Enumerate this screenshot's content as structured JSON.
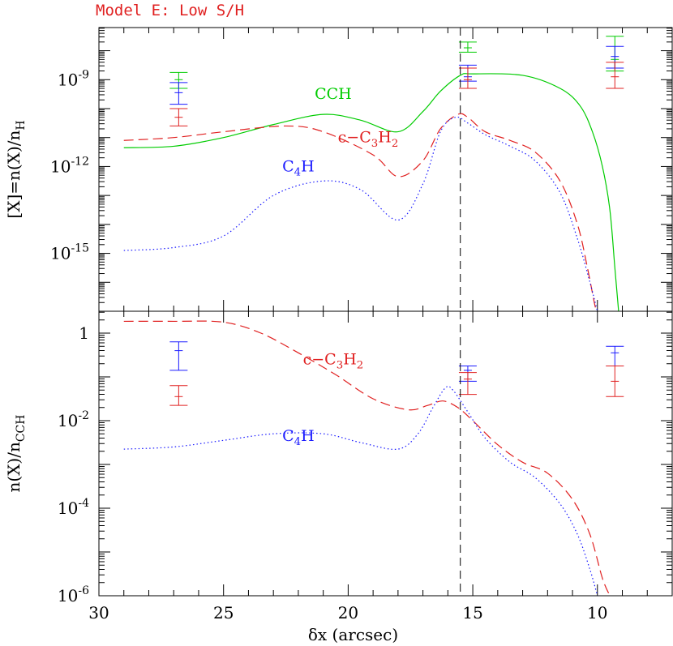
{
  "header": {
    "model_title": "Model E: Low S/H"
  },
  "colors": {
    "axis": "#000000",
    "cch": "#00cc00",
    "c3h2": "#e02020",
    "c4h": "#1a1aff",
    "title": "#e02020"
  },
  "chart_data": [
    {
      "type": "line",
      "panel": "top",
      "ylabel": "[X]=n(X)/n_H",
      "xlabel": "δx (arcsec)",
      "x_reversed": true,
      "xlim": [
        30,
        7
      ],
      "ylog": true,
      "ylim_log10": [
        -17,
        -7.2
      ],
      "y_ticks": [
        {
          "value_log10": -9,
          "label": "10",
          "exp": "-9"
        },
        {
          "value_log10": -12,
          "label": "10",
          "exp": "-12"
        },
        {
          "value_log10": -15,
          "label": "10",
          "exp": "-15"
        }
      ],
      "vertical_line_x": 15.5,
      "series": [
        {
          "name": "CCH",
          "style": "solid",
          "color_key": "cch",
          "x_log10y": [
            [
              29,
              -11.35
            ],
            [
              27,
              -11.3
            ],
            [
              25,
              -11.0
            ],
            [
              23,
              -10.55
            ],
            [
              21,
              -10.2
            ],
            [
              19.5,
              -10.4
            ],
            [
              18,
              -10.8
            ],
            [
              17,
              -10.1
            ],
            [
              16.3,
              -9.4
            ],
            [
              15.5,
              -8.85
            ],
            [
              15,
              -8.8
            ],
            [
              13,
              -8.85
            ],
            [
              11.5,
              -9.3
            ],
            [
              10.7,
              -9.9
            ],
            [
              10.2,
              -10.8
            ],
            [
              9.8,
              -12.0
            ],
            [
              9.5,
              -13.5
            ],
            [
              9.3,
              -15.5
            ],
            [
              9.15,
              -17.0
            ]
          ]
        },
        {
          "name": "c-C3H2",
          "style": "dashed",
          "color_key": "c3h2",
          "x_log10y": [
            [
              29,
              -11.1
            ],
            [
              27,
              -11.0
            ],
            [
              25,
              -10.8
            ],
            [
              22.5,
              -10.6
            ],
            [
              21,
              -10.8
            ],
            [
              19,
              -11.6
            ],
            [
              18,
              -12.35
            ],
            [
              17,
              -11.8
            ],
            [
              16.3,
              -10.7
            ],
            [
              15.6,
              -10.2
            ],
            [
              15.2,
              -10.3
            ],
            [
              14.5,
              -10.8
            ],
            [
              13.5,
              -11.1
            ],
            [
              12.5,
              -11.5
            ],
            [
              11.5,
              -12.5
            ],
            [
              10.8,
              -14.0
            ],
            [
              10.4,
              -15.5
            ],
            [
              10.1,
              -16.8
            ],
            [
              10.0,
              -17.0
            ]
          ]
        },
        {
          "name": "C4H",
          "style": "dotted",
          "color_key": "c4h",
          "x_log10y": [
            [
              29,
              -14.9
            ],
            [
              27,
              -14.8
            ],
            [
              25,
              -14.4
            ],
            [
              23,
              -13.0
            ],
            [
              21,
              -12.5
            ],
            [
              19.5,
              -12.8
            ],
            [
              18,
              -13.85
            ],
            [
              17,
              -12.6
            ],
            [
              16.3,
              -10.8
            ],
            [
              15.7,
              -10.3
            ],
            [
              15.2,
              -10.5
            ],
            [
              14.5,
              -10.9
            ],
            [
              13.5,
              -11.3
            ],
            [
              12.5,
              -11.8
            ],
            [
              11.5,
              -12.9
            ],
            [
              10.8,
              -14.5
            ],
            [
              10.3,
              -16.0
            ],
            [
              10.0,
              -17.0
            ]
          ]
        }
      ],
      "observations": [
        {
          "x": 26.8,
          "color_key": "cch",
          "center": -9.0,
          "low": -9.3,
          "high": -8.75
        },
        {
          "x": 26.8,
          "color_key": "c4h",
          "center": -9.45,
          "low": -9.85,
          "high": -9.1
        },
        {
          "x": 26.8,
          "color_key": "c3h2",
          "center": -10.3,
          "low": -10.6,
          "high": -10.0
        },
        {
          "x": 15.2,
          "color_key": "cch",
          "center": -7.9,
          "low": -8.05,
          "high": -7.7
        },
        {
          "x": 15.2,
          "color_key": "c4h",
          "center": -8.9,
          "low": -9.05,
          "high": -8.5
        },
        {
          "x": 15.2,
          "color_key": "c3h2",
          "center": -9.0,
          "low": -9.3,
          "high": -8.6
        },
        {
          "x": 9.3,
          "color_key": "cch",
          "center": -8.3,
          "low": -8.7,
          "high": -7.5
        },
        {
          "x": 9.3,
          "color_key": "c4h",
          "center": -8.2,
          "low": -8.6,
          "high": -7.85
        },
        {
          "x": 9.3,
          "color_key": "c3h2",
          "center": -8.9,
          "low": -9.3,
          "high": -8.4
        }
      ],
      "annotations": [
        {
          "text": "CCH",
          "color_key": "cch",
          "x": 20.6,
          "log10y": -9.5
        },
        {
          "text": "c−C3H2",
          "color_key": "c3h2",
          "x": 19.2,
          "log10y": -11.0
        },
        {
          "text": "C4H",
          "color_key": "c4h",
          "x": 22.0,
          "log10y": -12.0
        }
      ]
    },
    {
      "type": "line",
      "panel": "bottom",
      "ylabel": "n(X)/n_CCH",
      "xlabel": "δx (arcsec)",
      "x_reversed": true,
      "xlim": [
        30,
        7
      ],
      "ylog": true,
      "ylim_log10": [
        -6,
        0.5
      ],
      "x_ticks": [
        30,
        25,
        20,
        15,
        10
      ],
      "y_ticks": [
        {
          "value_log10": 0,
          "label": "1",
          "exp": ""
        },
        {
          "value_log10": -2,
          "label": "10",
          "exp": "-2"
        },
        {
          "value_log10": -4,
          "label": "10",
          "exp": "-4"
        },
        {
          "value_log10": -6,
          "label": "10",
          "exp": "-6"
        }
      ],
      "vertical_line_x": 15.5,
      "series": [
        {
          "name": "c-C3H2",
          "style": "dashed",
          "color_key": "c3h2",
          "x_log10y": [
            [
              29,
              0.27
            ],
            [
              27,
              0.27
            ],
            [
              25,
              0.25
            ],
            [
              23.5,
              0.0
            ],
            [
              22,
              -0.45
            ],
            [
              20.5,
              -0.95
            ],
            [
              19,
              -1.5
            ],
            [
              17.6,
              -1.75
            ],
            [
              16.8,
              -1.65
            ],
            [
              16.2,
              -1.55
            ],
            [
              15.6,
              -1.7
            ],
            [
              15,
              -2.0
            ],
            [
              14,
              -2.55
            ],
            [
              13,
              -2.95
            ],
            [
              12,
              -3.2
            ],
            [
              11,
              -3.8
            ],
            [
              10.3,
              -4.6
            ],
            [
              9.8,
              -5.6
            ],
            [
              9.5,
              -6.0
            ]
          ]
        },
        {
          "name": "C4H",
          "style": "dotted",
          "color_key": "c4h",
          "x_log10y": [
            [
              29,
              -2.65
            ],
            [
              27,
              -2.6
            ],
            [
              25,
              -2.45
            ],
            [
              23,
              -2.3
            ],
            [
              21,
              -2.3
            ],
            [
              19.5,
              -2.5
            ],
            [
              18,
              -2.65
            ],
            [
              17.2,
              -2.3
            ],
            [
              16.6,
              -1.7
            ],
            [
              16.1,
              -1.25
            ],
            [
              15.8,
              -1.3
            ],
            [
              15.2,
              -1.8
            ],
            [
              14.5,
              -2.4
            ],
            [
              13.5,
              -2.95
            ],
            [
              12.5,
              -3.3
            ],
            [
              11.5,
              -3.9
            ],
            [
              10.8,
              -4.6
            ],
            [
              10.3,
              -5.4
            ],
            [
              10.0,
              -6.0
            ]
          ]
        }
      ],
      "observations": [
        {
          "x": 26.8,
          "color_key": "c4h",
          "center": -0.4,
          "low": -0.85,
          "high": -0.2
        },
        {
          "x": 26.8,
          "color_key": "c3h2",
          "center": -1.45,
          "low": -1.65,
          "high": -1.2
        },
        {
          "x": 15.2,
          "color_key": "c4h",
          "center": -0.85,
          "low": -1.1,
          "high": -0.75
        },
        {
          "x": 15.2,
          "color_key": "c3h2",
          "center": -1.05,
          "low": -1.4,
          "high": -0.9
        },
        {
          "x": 9.3,
          "color_key": "c4h",
          "center": -0.45,
          "low": -0.75,
          "high": -0.3
        },
        {
          "x": 9.3,
          "color_key": "c3h2",
          "center": -1.1,
          "low": -1.45,
          "high": -0.75
        }
      ],
      "annotations": [
        {
          "text": "c−C3H2",
          "color_key": "c3h2",
          "x": 20.6,
          "log10y": -0.6
        },
        {
          "text": "C4H",
          "color_key": "c4h",
          "x": 22.0,
          "log10y": -2.35
        }
      ]
    }
  ]
}
